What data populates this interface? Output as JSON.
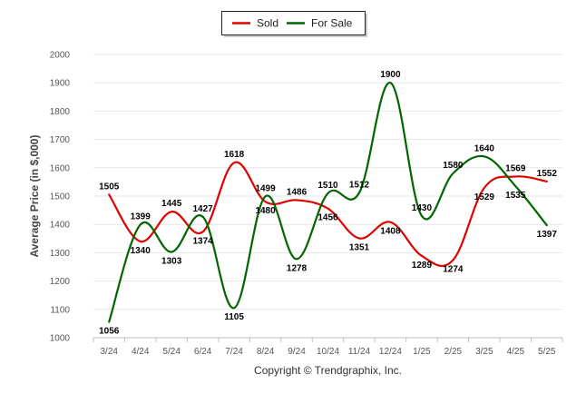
{
  "chart_data": {
    "type": "line",
    "categories": [
      "3/24",
      "4/24",
      "5/24",
      "6/24",
      "7/24",
      "8/24",
      "9/24",
      "10/24",
      "11/24",
      "12/24",
      "1/25",
      "2/25",
      "3/25",
      "4/25",
      "5/25"
    ],
    "series": [
      {
        "name": "Sold",
        "color": "#e00000",
        "values": [
          1505,
          1340,
          1445,
          1374,
          1618,
          1480,
          1486,
          1456,
          1351,
          1408,
          1289,
          1274,
          1529,
          1569,
          1552
        ]
      },
      {
        "name": "For Sale",
        "color": "#006600",
        "values": [
          1056,
          1399,
          1303,
          1427,
          1105,
          1499,
          1278,
          1510,
          1512,
          1900,
          1430,
          1580,
          1640,
          1535,
          1397
        ]
      }
    ],
    "title": "",
    "xlabel": "",
    "ylabel": "Average Price (in $,000)",
    "ylim": [
      1000,
      2000
    ],
    "yticks": [
      1000,
      1100,
      1200,
      1300,
      1400,
      1500,
      1600,
      1700,
      1800,
      1900,
      2000
    ],
    "grid": true,
    "legend_position": "top-center"
  },
  "copyright": "Copyright © Trendgraphix, Inc."
}
